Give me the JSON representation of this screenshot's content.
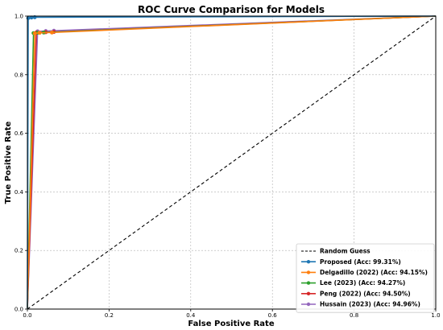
{
  "chart_data": {
    "type": "line",
    "title": "ROC Curve Comparison for Models",
    "xlabel": "False Positive Rate",
    "ylabel": "True Positive Rate",
    "xlim": [
      0.0,
      1.0
    ],
    "ylim": [
      0.0,
      1.0
    ],
    "xticks": [
      "0.0",
      "0.2",
      "0.4",
      "0.6",
      "0.8",
      "1.0"
    ],
    "yticks": [
      "0.0",
      "0.2",
      "0.4",
      "0.6",
      "0.8",
      "1.0"
    ],
    "grid": true,
    "legend_position": "bottom-right",
    "reference": {
      "name": "Random Guess",
      "color": "#000000",
      "style": "dashed",
      "x": [
        0,
        1
      ],
      "y": [
        0,
        1
      ]
    },
    "series": [
      {
        "name": "Proposed (Acc: 99.31%)",
        "color": "#1f77b4",
        "x": [
          0.0,
          0.002,
          0.01,
          0.018,
          1.0
        ],
        "y": [
          0.0,
          0.993,
          0.995,
          0.996,
          1.0
        ],
        "markers": [
          [
            0.002,
            0.993
          ],
          [
            0.01,
            0.995
          ],
          [
            0.018,
            0.996
          ]
        ]
      },
      {
        "name": "Delgadillo (2022) (Acc: 94.15%)",
        "color": "#ff7f0e",
        "x": [
          0.0,
          0.018,
          0.03,
          0.06,
          1.0
        ],
        "y": [
          0.0,
          0.941,
          0.943,
          0.944,
          1.0
        ],
        "markers": [
          [
            0.018,
            0.941
          ],
          [
            0.03,
            0.943
          ],
          [
            0.06,
            0.944
          ]
        ]
      },
      {
        "name": "Lee (2023) (Acc: 94.27%)",
        "color": "#2ca02c",
        "x": [
          0.0,
          0.015,
          0.025,
          0.04,
          1.0
        ],
        "y": [
          0.0,
          0.942,
          0.943,
          0.944,
          1.0
        ],
        "markers": [
          [
            0.015,
            0.942
          ],
          [
            0.025,
            0.943
          ],
          [
            0.04,
            0.944
          ]
        ]
      },
      {
        "name": "Peng (2022) (Acc: 94.50%)",
        "color": "#d62728",
        "x": [
          0.0,
          0.022,
          0.045,
          0.065,
          1.0
        ],
        "y": [
          0.0,
          0.944,
          0.945,
          0.946,
          1.0
        ],
        "markers": [
          [
            0.022,
            0.944
          ],
          [
            0.045,
            0.945
          ],
          [
            0.065,
            0.946
          ]
        ]
      },
      {
        "name": "Hussain (2023) (Acc: 94.96%)",
        "color": "#9467bd",
        "x": [
          0.0,
          0.025,
          0.045,
          0.065,
          1.0
        ],
        "y": [
          0.0,
          0.948,
          0.949,
          0.95,
          1.0
        ],
        "markers": [
          [
            0.025,
            0.948
          ],
          [
            0.045,
            0.949
          ],
          [
            0.065,
            0.95
          ]
        ]
      }
    ]
  }
}
